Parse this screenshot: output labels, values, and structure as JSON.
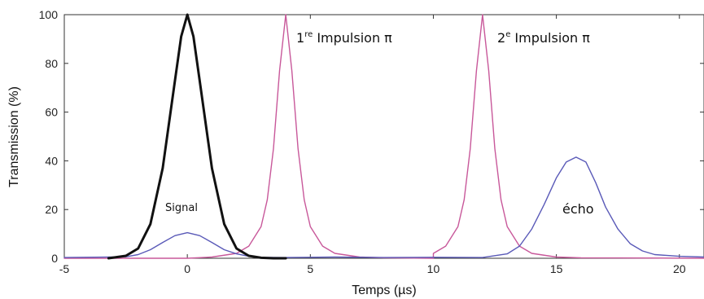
{
  "chart_data": {
    "type": "line",
    "title": "",
    "xlabel": "Temps (µs)",
    "ylabel": "Transmission (%)",
    "xlim": [
      -5,
      21
    ],
    "ylim": [
      0,
      100
    ],
    "grid": false,
    "x_ticks": [
      -5,
      0,
      5,
      10,
      15,
      20
    ],
    "y_ticks": [
      0,
      20,
      40,
      60,
      80,
      100
    ],
    "x_tick_labels": [
      "-5",
      "0",
      "5",
      "10",
      "15",
      "20"
    ],
    "y_tick_labels": [
      "0",
      "20",
      "40",
      "60",
      "80",
      "100"
    ],
    "colors": {
      "signal": "#111111",
      "pulse": "#c8589a",
      "transmission": "#5a5ab8"
    },
    "series": [
      {
        "key": "signal",
        "x": [
          -3.2,
          -2.5,
          -2.0,
          -1.5,
          -1.0,
          -0.5,
          -0.25,
          0,
          0.25,
          0.5,
          1.0,
          1.5,
          2.0,
          2.5,
          3.0,
          3.5,
          4.0
        ],
        "y": [
          0,
          1,
          4,
          14,
          37,
          73,
          91,
          100,
          91,
          73,
          37,
          14,
          4,
          1,
          0.2,
          0,
          0
        ]
      },
      {
        "key": "pulse1",
        "x": [
          -5,
          0,
          1,
          2,
          2.5,
          3.0,
          3.25,
          3.5,
          3.75,
          4.0,
          4.25,
          4.5,
          4.75,
          5.0,
          5.5,
          6.0,
          7.0,
          8.0,
          10.0
        ],
        "y": [
          0,
          0,
          0.5,
          2,
          5,
          13,
          24,
          45,
          77,
          100,
          77,
          45,
          24,
          13,
          5,
          2,
          0.5,
          0.2,
          0
        ]
      },
      {
        "key": "pulse2",
        "x": [
          10.0,
          10.0,
          10.5,
          11.0,
          11.25,
          11.5,
          11.75,
          12.0,
          12.25,
          12.5,
          12.75,
          13.0,
          13.5,
          14.0,
          15.0,
          16.0,
          21.0
        ],
        "y": [
          0,
          2,
          5,
          13,
          24,
          45,
          77,
          100,
          77,
          45,
          24,
          13,
          5,
          2,
          0.5,
          0.2,
          0
        ]
      },
      {
        "key": "transmission",
        "x": [
          -5,
          -2.5,
          -2.0,
          -1.5,
          -1.0,
          -0.5,
          0,
          0.5,
          1.0,
          1.5,
          2.0,
          2.5,
          3.0,
          4.0,
          6.0,
          8.0,
          10.0,
          12.0,
          13.0,
          13.5,
          14.0,
          14.5,
          15.0,
          15.4,
          15.8,
          16.2,
          16.6,
          17.0,
          17.5,
          18.0,
          18.5,
          19.0,
          20.0,
          21.0
        ],
        "y": [
          0.3,
          0.6,
          1.5,
          3.5,
          6.5,
          9.3,
          10.5,
          9.3,
          6.5,
          3.5,
          1.8,
          0.8,
          0.4,
          0.3,
          0.5,
          0.3,
          0.4,
          0.3,
          1.8,
          5,
          12,
          22,
          33,
          39.5,
          41.5,
          39.5,
          31,
          21,
          12,
          6,
          3,
          1.5,
          0.8,
          0.5
        ]
      }
    ],
    "annotations": {
      "signal": "Signal",
      "pulse1_num": "1",
      "pulse1_sup": "re",
      "pulse1_text": " Impulsion π",
      "pulse2_num": "2",
      "pulse2_sup": "e",
      "pulse2_text": " Impulsion π",
      "echo": "écho"
    }
  }
}
